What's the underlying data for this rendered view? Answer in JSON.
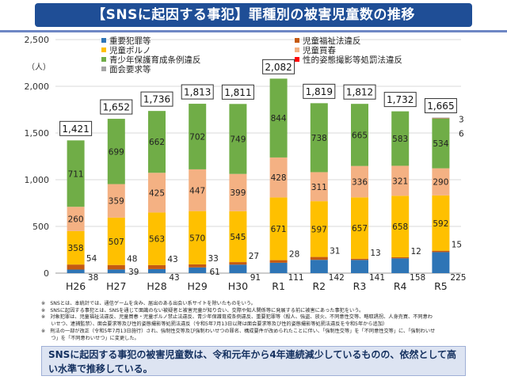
{
  "header": {
    "title": "【SNSに起因する事犯】罪種別の被害児童数の推移"
  },
  "chart_data": {
    "type": "bar",
    "stacked": true,
    "ylabel": "（人）",
    "ylim": [
      0,
      2500
    ],
    "yticks": [
      0,
      500,
      1000,
      1500,
      2000,
      2500
    ],
    "ytick_labels": [
      "0",
      "500",
      "1,000",
      "1,500",
      "2,000",
      "2,500"
    ],
    "grid": true,
    "legend_position": "top",
    "categories": [
      "H26",
      "H27",
      "H28",
      "H29",
      "H30",
      "R1",
      "R2",
      "R3",
      "R4",
      "R5"
    ],
    "totals": [
      1421,
      1652,
      1736,
      1813,
      1811,
      2082,
      1819,
      1812,
      1732,
      1665
    ],
    "total_labels": [
      "1,421",
      "1,652",
      "1,736",
      "1,813",
      "1,811",
      "2,082",
      "1,819",
      "1,812",
      "1,732",
      "1,665"
    ],
    "series": [
      {
        "name": "重要犯罪等",
        "color": "#2e75b6",
        "values": [
          38,
          39,
          43,
          61,
          91,
          111,
          142,
          141,
          158,
          225
        ]
      },
      {
        "name": "児童福祉法違反",
        "color": "#c55a11",
        "values": [
          54,
          48,
          43,
          33,
          27,
          28,
          31,
          13,
          12,
          15
        ]
      },
      {
        "name": "児童ポルノ",
        "color": "#ffc000",
        "values": [
          358,
          507,
          563,
          570,
          545,
          671,
          597,
          657,
          658,
          592
        ]
      },
      {
        "name": "児童買春",
        "color": "#f4b183",
        "values": [
          260,
          359,
          425,
          447,
          399,
          428,
          311,
          336,
          321,
          290
        ]
      },
      {
        "name": "青少年保護育成条例違反",
        "color": "#70ad47",
        "values": [
          711,
          699,
          662,
          702,
          749,
          844,
          738,
          665,
          583,
          534
        ]
      },
      {
        "name": "性的姿態撮影等処罰法違反",
        "color": "#ff0000",
        "values": [
          0,
          0,
          0,
          0,
          0,
          0,
          0,
          0,
          0,
          3
        ]
      },
      {
        "name": "面会要求等",
        "color": "#a5a5a5",
        "values": [
          0,
          0,
          0,
          0,
          0,
          0,
          0,
          0,
          0,
          6
        ]
      }
    ]
  },
  "notes": [
    "※　SNSとは、本統計では、通信ゲームを含み、届出のある出会い系サイトを除いたものをいう。",
    "※　SNSに起因する事犯とは、SNSを通じて面識のない被疑者と被害児童が知り合い、交際や知人関係等に発展する前に被害にあった事犯をいう。",
    "※　対象犯罪は、児童福祉法違反、児童買春・児童ポルノ禁止法違反、青少年保護育成条例違反、重要犯罪等（殺人、強盗、放火、不同意性交等、略取誘拐、人身売買、不同意わ",
    "　　いせつ、逮捕監禁）、面会要求等及び性的姿態撮影等処罰法違反（令和5年7月13日以降は面会要求等及び性的姿態撮影等処罰法違反を令和5年から追加）",
    "※　刑法の一部が改正（令和5年7月13日施行）され、強制性交等及び強制わいせつの罪名、構成要件が改められたことに伴い、「強制性交等」を「不同意性交等」に、「強制わいせ",
    "　　つ」を「不同意わいせつ」に変更した。"
  ],
  "summary": "SNSに起因する事犯の被害児童数は、令和元年から4年連続減少しているものの、依然として高い水準で推移している。"
}
